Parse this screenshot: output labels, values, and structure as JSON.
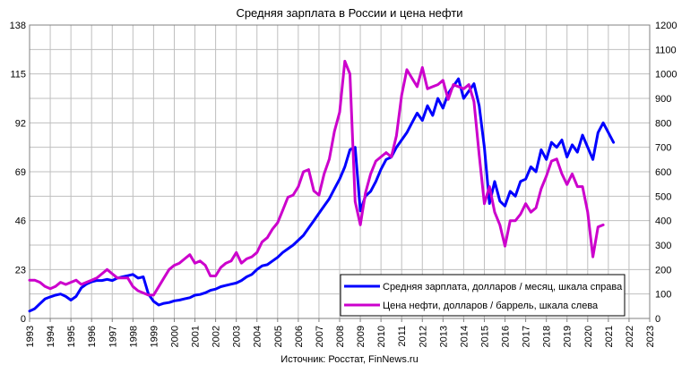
{
  "chart_data": {
    "type": "line",
    "title": "Средняя зарплата в России и цена нефти",
    "source": "Источник: Росстат, FinNews.ru",
    "x_range": [
      1993,
      2023
    ],
    "x_ticks": [
      "1993",
      "1994",
      "1995",
      "1996",
      "1997",
      "1998",
      "1999",
      "2000",
      "2001",
      "2002",
      "2003",
      "2004",
      "2005",
      "2006",
      "2007",
      "2008",
      "2009",
      "2010",
      "2011",
      "2012",
      "2013",
      "2014",
      "2015",
      "2016",
      "2017",
      "2018",
      "2019",
      "2020",
      "2021",
      "2022",
      "2023"
    ],
    "y_left": {
      "range": [
        0,
        138
      ],
      "ticks": [
        "0",
        "23",
        "46",
        "69",
        "92",
        "115",
        "138"
      ]
    },
    "y_right": {
      "range": [
        0,
        1200
      ],
      "ticks": [
        "0",
        "100",
        "200",
        "300",
        "400",
        "500",
        "600",
        "700",
        "800",
        "900",
        "1000",
        "1100",
        "1200"
      ]
    },
    "grid": true,
    "legend_position": "bottom-right",
    "series": [
      {
        "name": "Средняя зарплата, долларов / месяц, шкала справа",
        "color": "#0000ff",
        "axis": "right",
        "points": [
          [
            1993.0,
            30
          ],
          [
            1993.25,
            40
          ],
          [
            1993.5,
            60
          ],
          [
            1993.75,
            80
          ],
          [
            1994.0,
            88
          ],
          [
            1994.25,
            95
          ],
          [
            1994.5,
            100
          ],
          [
            1994.75,
            90
          ],
          [
            1995.0,
            75
          ],
          [
            1995.25,
            90
          ],
          [
            1995.5,
            125
          ],
          [
            1995.75,
            140
          ],
          [
            1996.0,
            150
          ],
          [
            1996.25,
            155
          ],
          [
            1996.5,
            155
          ],
          [
            1996.75,
            160
          ],
          [
            1997.0,
            155
          ],
          [
            1997.25,
            165
          ],
          [
            1997.5,
            170
          ],
          [
            1997.75,
            175
          ],
          [
            1998.0,
            180
          ],
          [
            1998.25,
            165
          ],
          [
            1998.5,
            170
          ],
          [
            1998.75,
            100
          ],
          [
            1999.0,
            70
          ],
          [
            1999.25,
            55
          ],
          [
            1999.5,
            62
          ],
          [
            1999.75,
            65
          ],
          [
            2000.0,
            72
          ],
          [
            2000.25,
            75
          ],
          [
            2000.5,
            80
          ],
          [
            2000.75,
            85
          ],
          [
            2001.0,
            95
          ],
          [
            2001.25,
            98
          ],
          [
            2001.5,
            105
          ],
          [
            2001.75,
            115
          ],
          [
            2002.0,
            120
          ],
          [
            2002.25,
            130
          ],
          [
            2002.5,
            135
          ],
          [
            2002.75,
            140
          ],
          [
            2003.0,
            145
          ],
          [
            2003.25,
            155
          ],
          [
            2003.5,
            170
          ],
          [
            2003.75,
            180
          ],
          [
            2004.0,
            200
          ],
          [
            2004.25,
            215
          ],
          [
            2004.5,
            220
          ],
          [
            2004.75,
            235
          ],
          [
            2005.0,
            250
          ],
          [
            2005.25,
            270
          ],
          [
            2005.5,
            285
          ],
          [
            2005.75,
            300
          ],
          [
            2006.0,
            320
          ],
          [
            2006.25,
            340
          ],
          [
            2006.5,
            370
          ],
          [
            2006.75,
            400
          ],
          [
            2007.0,
            430
          ],
          [
            2007.25,
            460
          ],
          [
            2007.5,
            490
          ],
          [
            2007.75,
            530
          ],
          [
            2008.0,
            570
          ],
          [
            2008.25,
            620
          ],
          [
            2008.5,
            690
          ],
          [
            2008.75,
            700
          ],
          [
            2009.0,
            440
          ],
          [
            2009.25,
            500
          ],
          [
            2009.5,
            520
          ],
          [
            2009.75,
            560
          ],
          [
            2010.0,
            610
          ],
          [
            2010.25,
            650
          ],
          [
            2010.5,
            660
          ],
          [
            2010.75,
            700
          ],
          [
            2011.0,
            730
          ],
          [
            2011.25,
            760
          ],
          [
            2011.5,
            800
          ],
          [
            2011.75,
            840
          ],
          [
            2012.0,
            810
          ],
          [
            2012.25,
            870
          ],
          [
            2012.5,
            830
          ],
          [
            2012.75,
            900
          ],
          [
            2013.0,
            860
          ],
          [
            2013.25,
            920
          ],
          [
            2013.5,
            950
          ],
          [
            2013.75,
            980
          ],
          [
            2014.0,
            900
          ],
          [
            2014.25,
            930
          ],
          [
            2014.5,
            960
          ],
          [
            2014.75,
            870
          ],
          [
            2015.0,
            700
          ],
          [
            2015.25,
            470
          ],
          [
            2015.5,
            560
          ],
          [
            2015.75,
            480
          ],
          [
            2016.0,
            460
          ],
          [
            2016.25,
            520
          ],
          [
            2016.5,
            500
          ],
          [
            2016.75,
            560
          ],
          [
            2017.0,
            570
          ],
          [
            2017.25,
            620
          ],
          [
            2017.5,
            600
          ],
          [
            2017.75,
            690
          ],
          [
            2018.0,
            650
          ],
          [
            2018.25,
            720
          ],
          [
            2018.5,
            700
          ],
          [
            2018.75,
            730
          ],
          [
            2019.0,
            660
          ],
          [
            2019.25,
            710
          ],
          [
            2019.5,
            680
          ],
          [
            2019.75,
            750
          ],
          [
            2020.0,
            700
          ],
          [
            2020.25,
            650
          ],
          [
            2020.5,
            760
          ],
          [
            2020.75,
            800
          ],
          [
            2021.0,
            760
          ],
          [
            2021.25,
            720
          ]
        ]
      },
      {
        "name": "Цена нефти, долларов / баррель, шкала слева",
        "color": "#cc00cc",
        "axis": "left",
        "points": [
          [
            1993.0,
            18
          ],
          [
            1993.25,
            18
          ],
          [
            1993.5,
            17
          ],
          [
            1993.75,
            15
          ],
          [
            1994.0,
            14
          ],
          [
            1994.25,
            15
          ],
          [
            1994.5,
            17
          ],
          [
            1994.75,
            16
          ],
          [
            1995.0,
            17
          ],
          [
            1995.25,
            18
          ],
          [
            1995.5,
            16
          ],
          [
            1995.75,
            17
          ],
          [
            1996.0,
            18
          ],
          [
            1996.25,
            19
          ],
          [
            1996.5,
            21
          ],
          [
            1996.75,
            23
          ],
          [
            1997.0,
            21
          ],
          [
            1997.25,
            19
          ],
          [
            1997.5,
            19
          ],
          [
            1997.75,
            19
          ],
          [
            1998.0,
            15
          ],
          [
            1998.25,
            13
          ],
          [
            1998.5,
            12
          ],
          [
            1998.75,
            11
          ],
          [
            1999.0,
            11
          ],
          [
            1999.25,
            15
          ],
          [
            1999.5,
            19
          ],
          [
            1999.75,
            23
          ],
          [
            2000.0,
            25
          ],
          [
            2000.25,
            26
          ],
          [
            2000.5,
            28
          ],
          [
            2000.75,
            30
          ],
          [
            2001.0,
            26
          ],
          [
            2001.25,
            27
          ],
          [
            2001.5,
            25
          ],
          [
            2001.75,
            20
          ],
          [
            2002.0,
            20
          ],
          [
            2002.25,
            24
          ],
          [
            2002.5,
            26
          ],
          [
            2002.75,
            27
          ],
          [
            2003.0,
            31
          ],
          [
            2003.25,
            26
          ],
          [
            2003.5,
            28
          ],
          [
            2003.75,
            29
          ],
          [
            2004.0,
            31
          ],
          [
            2004.25,
            36
          ],
          [
            2004.5,
            38
          ],
          [
            2004.75,
            42
          ],
          [
            2005.0,
            45
          ],
          [
            2005.25,
            51
          ],
          [
            2005.5,
            57
          ],
          [
            2005.75,
            58
          ],
          [
            2006.0,
            62
          ],
          [
            2006.25,
            69
          ],
          [
            2006.5,
            70
          ],
          [
            2006.75,
            60
          ],
          [
            2007.0,
            58
          ],
          [
            2007.25,
            68
          ],
          [
            2007.5,
            75
          ],
          [
            2007.75,
            88
          ],
          [
            2008.0,
            97
          ],
          [
            2008.25,
            121
          ],
          [
            2008.5,
            115
          ],
          [
            2008.75,
            55
          ],
          [
            2009.0,
            44
          ],
          [
            2009.25,
            59
          ],
          [
            2009.5,
            68
          ],
          [
            2009.75,
            74
          ],
          [
            2010.0,
            76
          ],
          [
            2010.25,
            78
          ],
          [
            2010.5,
            76
          ],
          [
            2010.75,
            86
          ],
          [
            2011.0,
            105
          ],
          [
            2011.25,
            117
          ],
          [
            2011.5,
            113
          ],
          [
            2011.75,
            109
          ],
          [
            2012.0,
            118
          ],
          [
            2012.25,
            108
          ],
          [
            2012.5,
            109
          ],
          [
            2012.75,
            110
          ],
          [
            2013.0,
            112
          ],
          [
            2013.25,
            103
          ],
          [
            2013.5,
            110
          ],
          [
            2013.75,
            109
          ],
          [
            2014.0,
            108
          ],
          [
            2014.25,
            110
          ],
          [
            2014.5,
            102
          ],
          [
            2014.75,
            77
          ],
          [
            2015.0,
            54
          ],
          [
            2015.25,
            62
          ],
          [
            2015.5,
            50
          ],
          [
            2015.75,
            44
          ],
          [
            2016.0,
            34
          ],
          [
            2016.25,
            46
          ],
          [
            2016.5,
            46
          ],
          [
            2016.75,
            49
          ],
          [
            2017.0,
            54
          ],
          [
            2017.25,
            50
          ],
          [
            2017.5,
            52
          ],
          [
            2017.75,
            61
          ],
          [
            2018.0,
            67
          ],
          [
            2018.25,
            74
          ],
          [
            2018.5,
            75
          ],
          [
            2018.75,
            68
          ],
          [
            2019.0,
            63
          ],
          [
            2019.25,
            68
          ],
          [
            2019.5,
            62
          ],
          [
            2019.75,
            62
          ],
          [
            2020.0,
            50
          ],
          [
            2020.25,
            29
          ],
          [
            2020.5,
            43
          ],
          [
            2020.75,
            44
          ]
        ]
      }
    ]
  }
}
